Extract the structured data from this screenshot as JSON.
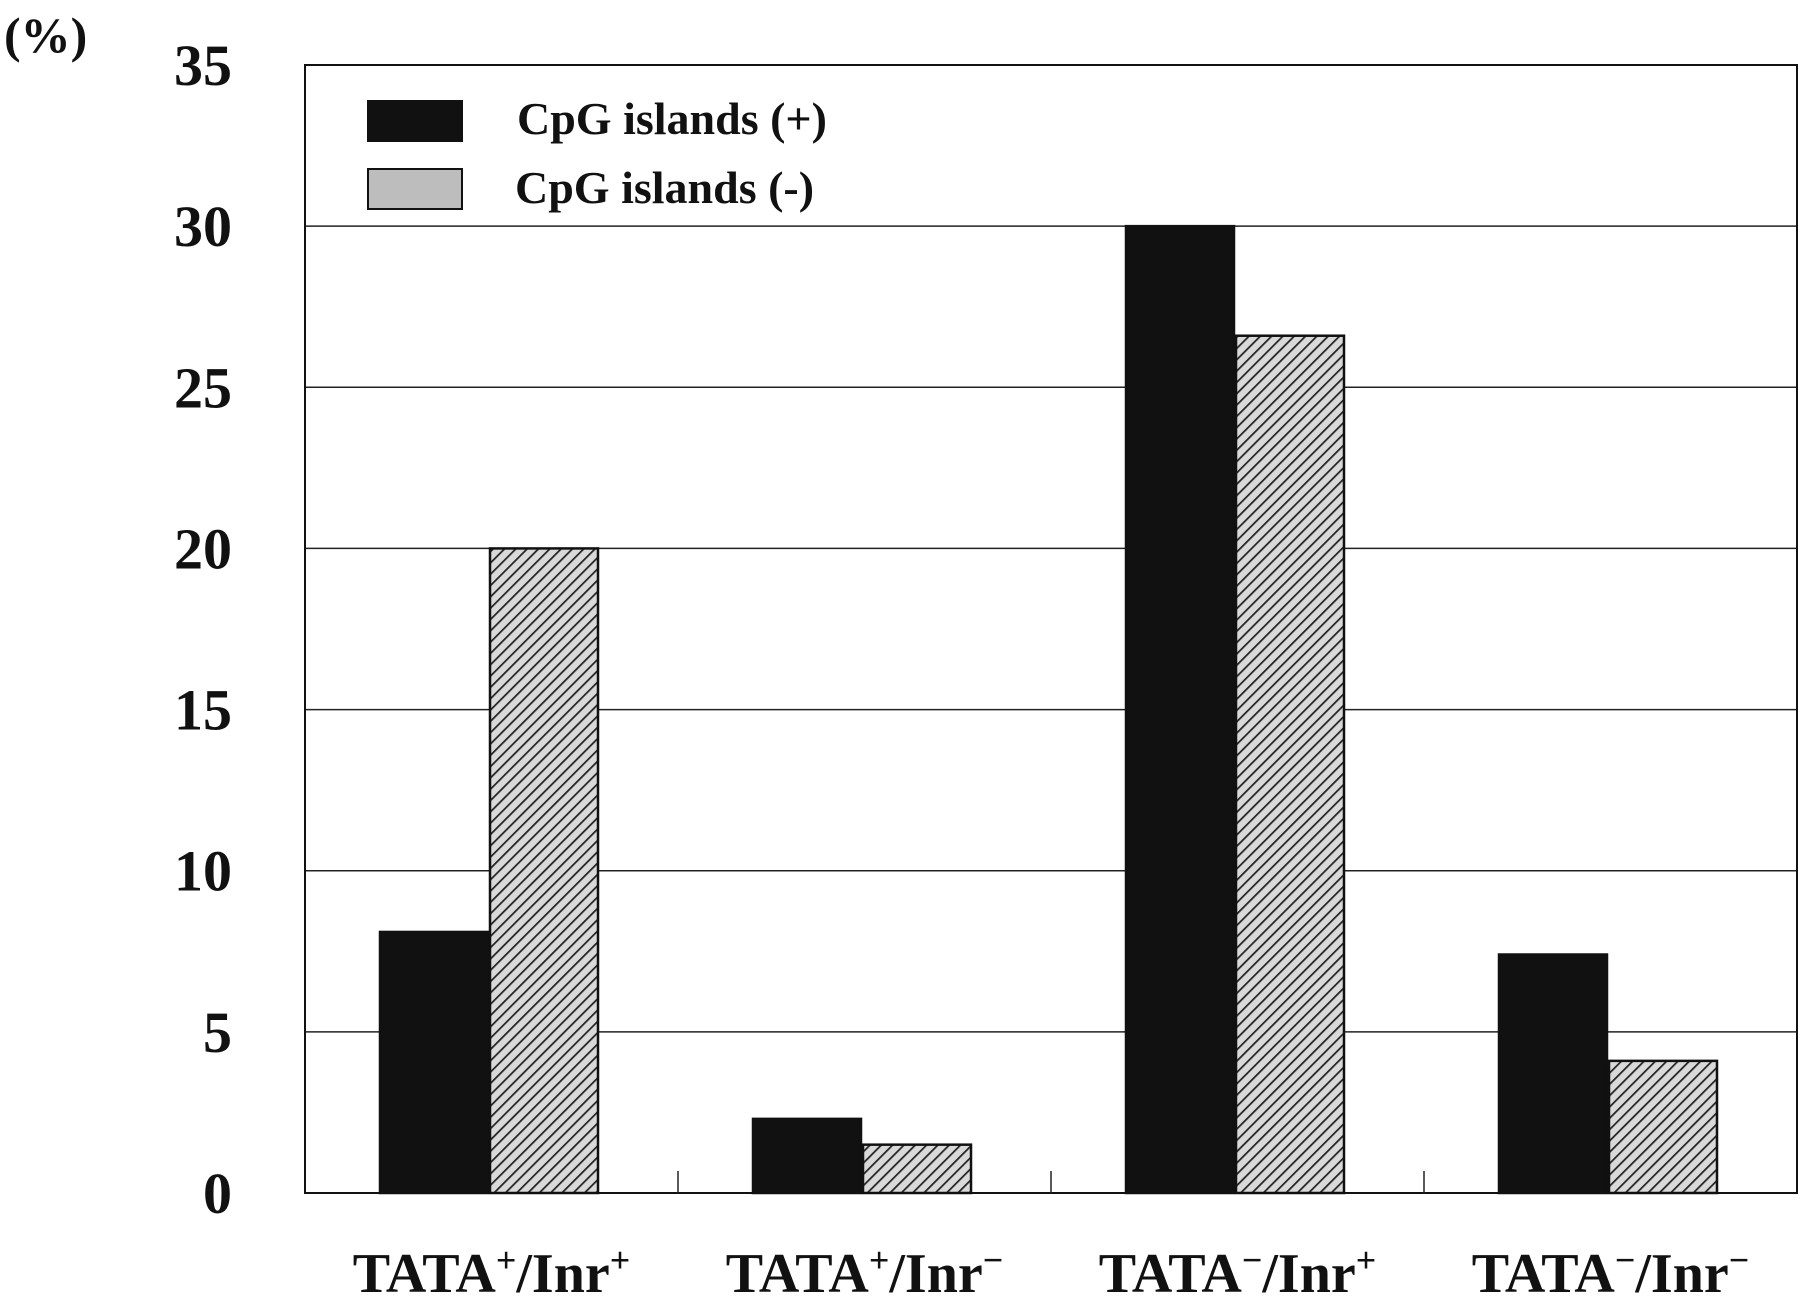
{
  "chart_data": {
    "type": "bar",
    "title": "",
    "xlabel": "",
    "ylabel": "(%)",
    "ylim": [
      0,
      35
    ],
    "yticks": [
      0,
      5,
      10,
      15,
      20,
      25,
      30,
      35
    ],
    "categories": [
      {
        "base1": "TATA",
        "sup1": "+",
        "base2": "/Inr",
        "sup2": "+"
      },
      {
        "base1": "TATA",
        "sup1": "+",
        "base2": "/Inr",
        "sup2": "−"
      },
      {
        "base1": "TATA",
        "sup1": "−",
        "base2": "/Inr",
        "sup2": "+"
      },
      {
        "base1": "TATA",
        "sup1": "−",
        "base2": "/Inr",
        "sup2": "−"
      }
    ],
    "series": [
      {
        "name": "CpG islands (+)",
        "values": [
          8.1,
          2.3,
          30.0,
          7.4
        ],
        "color": "#111111",
        "pattern": "solid"
      },
      {
        "name": "CpG islands (-)",
        "values": [
          20.0,
          1.5,
          26.6,
          4.1
        ],
        "color": "#bdbdbd",
        "pattern": "hatched"
      }
    ],
    "grid": true,
    "legend_position": "top-left"
  }
}
